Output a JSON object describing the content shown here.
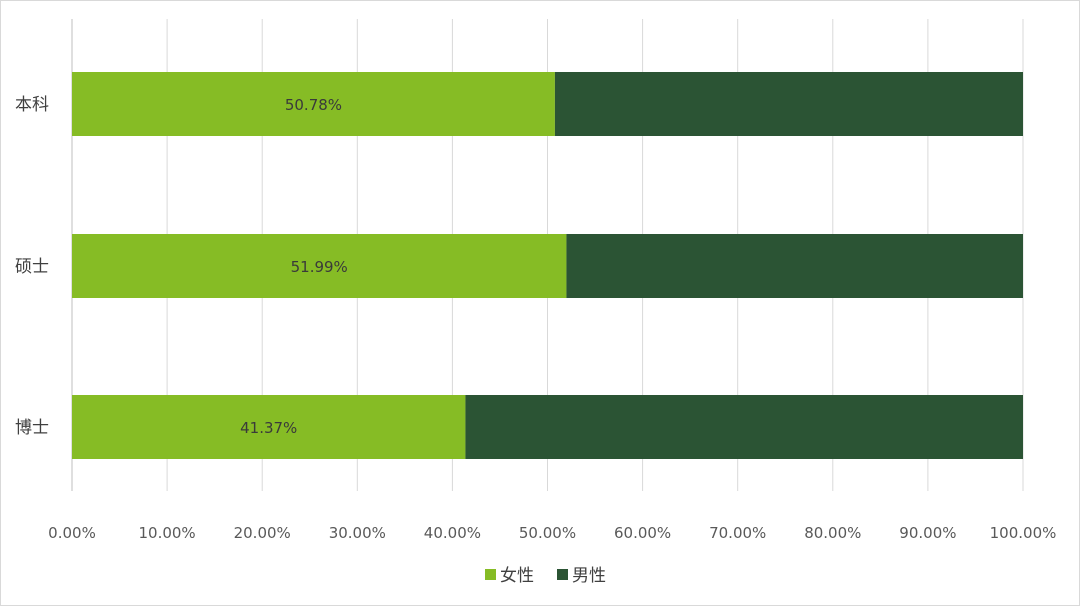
{
  "chart_data": {
    "type": "bar",
    "orientation": "horizontal",
    "stacked": true,
    "categories": [
      "本科",
      "硕士",
      "博士"
    ],
    "series": [
      {
        "name": "女性",
        "values": [
          50.78,
          51.99,
          41.37
        ],
        "color": "#86bc25"
      },
      {
        "name": "男性",
        "values": [
          49.22,
          48.01,
          58.63
        ],
        "color": "#2b5434"
      }
    ],
    "data_labels": [
      "50.78%",
      "51.99%",
      "41.37%"
    ],
    "xticks": [
      "0.00%",
      "10.00%",
      "20.00%",
      "30.00%",
      "40.00%",
      "50.00%",
      "60.00%",
      "70.00%",
      "80.00%",
      "90.00%",
      "100.00%"
    ],
    "xlim": [
      0,
      100
    ],
    "grid": "vertical",
    "legend": {
      "position": "bottom",
      "entries": [
        "女性",
        "男性"
      ]
    }
  }
}
